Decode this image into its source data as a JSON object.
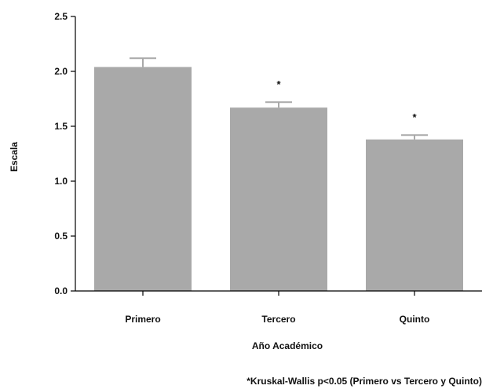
{
  "chart_data": {
    "type": "bar",
    "categories": [
      "Primero",
      "Tercero",
      "Quinto"
    ],
    "values": [
      2.04,
      1.67,
      1.38
    ],
    "error_upper": [
      2.12,
      1.72,
      1.42
    ],
    "significance": [
      "",
      "*",
      "*"
    ],
    "xlabel": "Año Académico",
    "ylabel": "Escala",
    "ylim": [
      0,
      2.5
    ],
    "yticks": [
      "0.0",
      "0.5",
      "1.0",
      "1.5",
      "2.0",
      "2.5"
    ],
    "bar_color": "#a9a9a9",
    "grid": false,
    "footnote": "*Kruskal-Wallis p<0.05 (Primero vs Tercero y Quinto)"
  }
}
